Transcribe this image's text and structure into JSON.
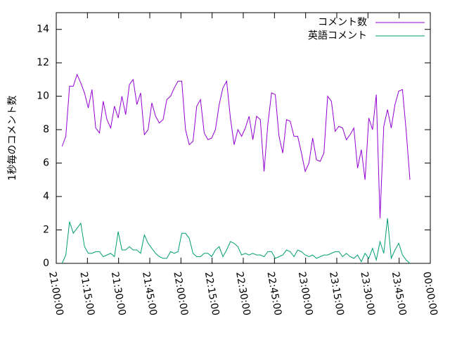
{
  "chart_data": {
    "type": "line",
    "ylabel": "1秒毎のコメント数",
    "x": [
      "21:02:48",
      "21:04:36",
      "21:06:24",
      "21:08:12",
      "21:10:00",
      "21:11:48",
      "21:13:36",
      "21:15:24",
      "21:17:12",
      "21:19:00",
      "21:20:48",
      "21:22:36",
      "21:24:24",
      "21:26:12",
      "21:28:00",
      "21:29:48",
      "21:31:36",
      "21:33:24",
      "21:35:12",
      "21:37:00",
      "21:38:48",
      "21:40:36",
      "21:42:24",
      "21:44:12",
      "21:46:00",
      "21:47:48",
      "21:49:36",
      "21:51:24",
      "21:53:12",
      "21:55:00",
      "21:56:48",
      "21:58:36",
      "22:00:24",
      "22:02:12",
      "22:04:00",
      "22:05:48",
      "22:07:36",
      "22:09:24",
      "22:11:12",
      "22:13:00",
      "22:14:48",
      "22:16:36",
      "22:18:24",
      "22:20:12",
      "22:22:00",
      "22:23:48",
      "22:25:36",
      "22:27:24",
      "22:29:12",
      "22:31:00",
      "22:32:48",
      "22:34:36",
      "22:36:24",
      "22:38:12",
      "22:40:00",
      "22:41:48",
      "22:43:36",
      "22:45:24",
      "22:47:12",
      "22:49:00",
      "22:50:48",
      "22:52:36",
      "22:54:24",
      "22:56:12",
      "22:58:00",
      "22:59:48",
      "23:01:36",
      "23:03:24",
      "23:05:12",
      "23:07:00",
      "23:08:48",
      "23:10:36",
      "23:12:24",
      "23:14:12",
      "23:16:00",
      "23:17:48",
      "23:19:36",
      "23:21:24",
      "23:23:12",
      "23:25:00",
      "23:26:48",
      "23:28:36",
      "23:30:24",
      "23:32:12",
      "23:34:00",
      "23:35:48",
      "23:37:36",
      "23:39:24",
      "23:41:12",
      "23:43:00",
      "23:44:48",
      "23:46:36",
      "23:48:24",
      "23:50:12"
    ],
    "series": [
      {
        "name": "コメント数",
        "color": "#9400d3",
        "values": [
          7.0,
          7.6,
          10.6,
          10.6,
          11.3,
          10.8,
          10.2,
          9.3,
          10.4,
          8.1,
          7.8,
          9.7,
          8.6,
          8.1,
          9.4,
          8.7,
          10.0,
          8.9,
          10.7,
          11.0,
          9.5,
          10.2,
          7.7,
          8.0,
          9.6,
          8.8,
          8.4,
          8.6,
          9.8,
          10.0,
          10.5,
          10.9,
          10.9,
          8.0,
          7.1,
          7.3,
          9.4,
          9.8,
          7.8,
          7.4,
          7.5,
          8.0,
          9.5,
          10.5,
          10.9,
          8.7,
          7.1,
          8.0,
          7.6,
          8.1,
          8.8,
          7.4,
          8.8,
          8.6,
          5.5,
          8.3,
          10.2,
          10.1,
          7.6,
          6.6,
          8.6,
          8.5,
          7.6,
          7.6,
          6.6,
          5.5,
          6.0,
          7.5,
          6.2,
          6.1,
          6.6,
          10.0,
          9.7,
          7.9,
          8.2,
          8.1,
          7.4,
          7.7,
          8.1,
          5.7,
          6.8,
          5.0,
          8.7,
          8.0,
          10.1,
          2.7,
          8.2,
          9.2,
          8.1,
          9.5,
          10.3,
          10.4,
          7.9,
          5.0
        ]
      },
      {
        "name": "英語コメント",
        "color": "#009e73",
        "values": [
          0.0,
          0.5,
          2.5,
          1.8,
          2.1,
          2.4,
          1.0,
          0.6,
          0.6,
          0.7,
          0.7,
          0.4,
          0.5,
          0.6,
          0.4,
          1.9,
          0.8,
          0.8,
          1.0,
          0.8,
          0.8,
          0.6,
          1.7,
          1.2,
          0.9,
          0.6,
          0.4,
          0.3,
          0.3,
          0.7,
          0.6,
          0.7,
          1.8,
          1.8,
          1.5,
          0.6,
          0.4,
          0.4,
          0.6,
          0.6,
          0.4,
          0.8,
          1.0,
          0.4,
          0.8,
          1.3,
          1.2,
          1.0,
          0.5,
          0.6,
          0.5,
          0.6,
          0.5,
          0.5,
          0.4,
          0.7,
          0.7,
          0.3,
          0.4,
          0.5,
          0.8,
          0.7,
          0.4,
          0.8,
          0.7,
          0.5,
          0.4,
          0.5,
          0.3,
          0.4,
          0.5,
          0.5,
          0.6,
          0.7,
          0.7,
          0.4,
          0.6,
          0.4,
          0.3,
          0.5,
          0.1,
          0.6,
          0.3,
          0.9,
          0.2,
          1.3,
          0.6,
          2.7,
          0.3,
          0.8,
          1.2,
          0.5,
          0.2,
          0.0
        ]
      }
    ],
    "xlim": [
      "21:00:00",
      "00:00:00"
    ],
    "xticks": [
      "21:00:00",
      "21:15:00",
      "21:30:00",
      "21:45:00",
      "22:00:00",
      "22:15:00",
      "22:30:00",
      "22:45:00",
      "23:00:00",
      "23:15:00",
      "23:30:00",
      "23:45:00",
      "00:00:00"
    ],
    "ylim": [
      0,
      15
    ],
    "yticks": [
      0,
      2,
      4,
      6,
      8,
      10,
      12,
      14
    ],
    "legend": "top-right"
  }
}
